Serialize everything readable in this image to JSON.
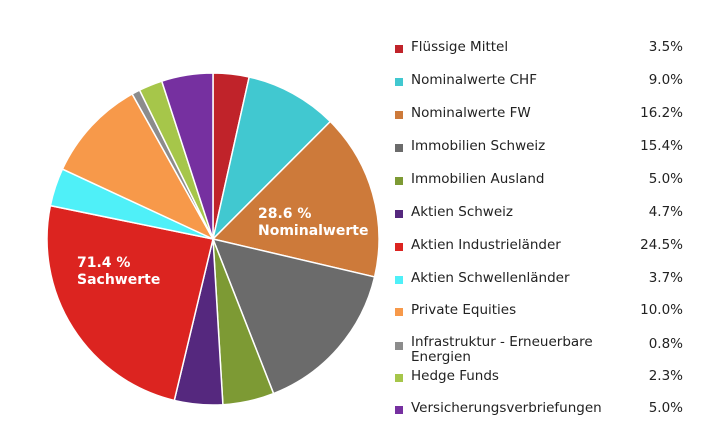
{
  "chart_data": {
    "type": "pie",
    "slices": [
      {
        "name": "Flüssige Mittel",
        "value": 3.5,
        "label": "3.5%",
        "color": "#c0232a"
      },
      {
        "name": "Nominalwerte CHF",
        "value": 9.0,
        "label": "9.0%",
        "color": "#41c8d0"
      },
      {
        "name": "Nominalwerte FW",
        "value": 16.2,
        "label": "16.2%",
        "color": "#cd7a3a"
      },
      {
        "name": "Immobilien Schweiz",
        "value": 15.4,
        "label": "15.4%",
        "color": "#6b6b6b"
      },
      {
        "name": "Immobilien Ausland",
        "value": 5.0,
        "label": "5.0%",
        "color": "#7d9a34"
      },
      {
        "name": "Aktien Schweiz",
        "value": 4.7,
        "label": "4.7%",
        "color": "#55287e"
      },
      {
        "name": "Aktien Industrieländer",
        "value": 24.5,
        "label": "24.5%",
        "color": "#dc2420"
      },
      {
        "name": "Aktien Schwellenländer",
        "value": 3.7,
        "label": "3.7%",
        "color": "#4ff0f8"
      },
      {
        "name": "Private Equities",
        "value": 10.0,
        "label": "10.0%",
        "color": "#f7994a"
      },
      {
        "name": "Infrastruktur - Erneuerbare Energien",
        "value": 0.8,
        "label": "0.8%",
        "color": "#8c8c8c"
      },
      {
        "name": "Hedge Funds",
        "value": 2.3,
        "label": "2.3%",
        "color": "#a6c64a"
      },
      {
        "name": "Versicherungsverbriefungen",
        "value": 5.0,
        "label": "5.0%",
        "color": "#7630a0"
      }
    ],
    "annotations": [
      {
        "line1": "28.6 %",
        "line2": "Nominalwerte"
      },
      {
        "line1": "71.4 %",
        "line2": "Sachwerte"
      }
    ],
    "legend_position": "right"
  }
}
